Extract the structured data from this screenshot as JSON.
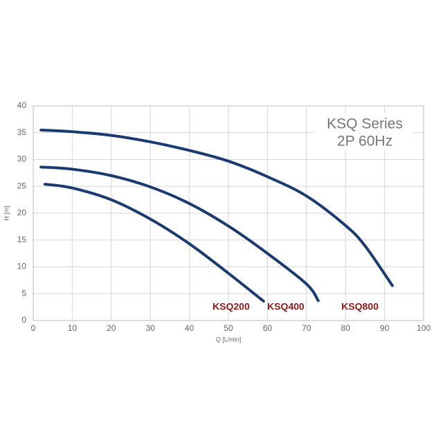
{
  "chart_data": {
    "type": "line",
    "title": "KSQ Series",
    "subtitle": "2P 60Hz",
    "x_label": "Q [L/min]",
    "y_label": "H [m]",
    "xlim": [
      0,
      100
    ],
    "ylim": [
      0,
      40
    ],
    "xticks": [
      0,
      10,
      20,
      30,
      40,
      50,
      60,
      70,
      80,
      90,
      100
    ],
    "yticks": [
      0,
      5,
      10,
      15,
      20,
      25,
      30,
      35,
      40
    ],
    "grid": true,
    "series": [
      {
        "name": "KSQ200",
        "color": "#1b3a6f",
        "x": [
          3,
          10,
          20,
          30,
          40,
          50,
          59
        ],
        "values": [
          25.4,
          24.7,
          22.5,
          18.9,
          14.3,
          8.8,
          3.6
        ]
      },
      {
        "name": "KSQ400",
        "color": "#1b3a6f",
        "x": [
          2,
          10,
          20,
          30,
          40,
          50,
          60,
          70,
          73
        ],
        "values": [
          28.6,
          28.2,
          27,
          24.9,
          21.8,
          17.6,
          12.5,
          6.8,
          3.7
        ]
      },
      {
        "name": "KSQ800",
        "color": "#1b3a6f",
        "x": [
          2,
          10,
          20,
          30,
          40,
          50,
          60,
          70,
          80,
          85,
          92
        ],
        "values": [
          35.5,
          35.2,
          34.5,
          33.3,
          31.7,
          29.7,
          26.8,
          23.2,
          17.7,
          13.9,
          6.5
        ]
      }
    ]
  }
}
